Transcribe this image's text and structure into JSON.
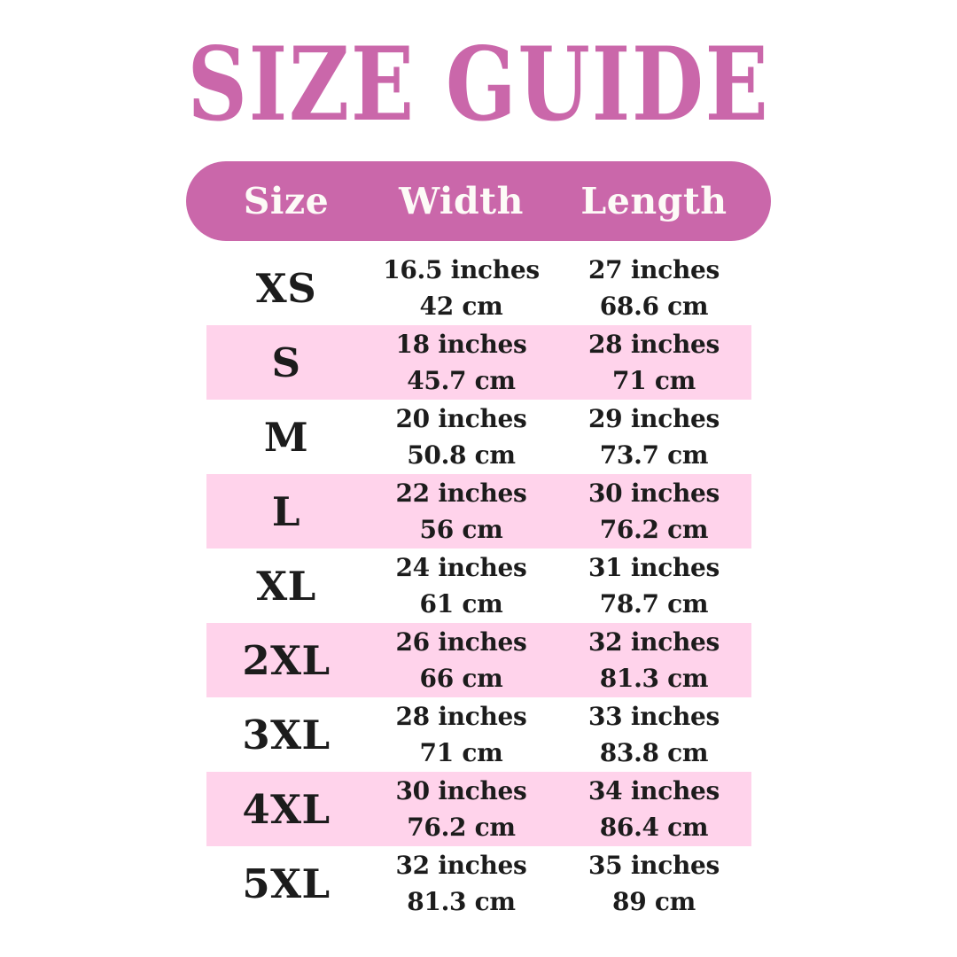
{
  "title": "SIZE GUIDE",
  "colors": {
    "accent_pink": "#ca67aa",
    "highlight_row_pink": "#ffd3eb",
    "header_text": "#fdfbf7",
    "body_text": "#1c1c1c",
    "background": "#ffffff"
  },
  "chart_data": {
    "type": "table",
    "title": "SIZE GUIDE",
    "columns": [
      "Size",
      "Width",
      "Length"
    ],
    "rows": [
      {
        "size": "XS",
        "width_in": "16.5 inches",
        "width_cm": "42 cm",
        "length_in": "27 inches",
        "length_cm": "68.6 cm",
        "highlighted": false
      },
      {
        "size": "S",
        "width_in": "18 inches",
        "width_cm": "45.7 cm",
        "length_in": "28 inches",
        "length_cm": "71 cm",
        "highlighted": true
      },
      {
        "size": "M",
        "width_in": "20 inches",
        "width_cm": "50.8 cm",
        "length_in": "29 inches",
        "length_cm": "73.7 cm",
        "highlighted": false
      },
      {
        "size": "L",
        "width_in": "22 inches",
        "width_cm": "56 cm",
        "length_in": "30 inches",
        "length_cm": "76.2 cm",
        "highlighted": true
      },
      {
        "size": "XL",
        "width_in": "24 inches",
        "width_cm": "61 cm",
        "length_in": "31 inches",
        "length_cm": "78.7 cm",
        "highlighted": false
      },
      {
        "size": "2XL",
        "width_in": "26 inches",
        "width_cm": "66 cm",
        "length_in": "32 inches",
        "length_cm": "81.3 cm",
        "highlighted": true
      },
      {
        "size": "3XL",
        "width_in": "28 inches",
        "width_cm": "71 cm",
        "length_in": "33 inches",
        "length_cm": "83.8 cm",
        "highlighted": false
      },
      {
        "size": "4XL",
        "width_in": "30 inches",
        "width_cm": "76.2 cm",
        "length_in": "34 inches",
        "length_cm": "86.4 cm",
        "highlighted": true
      },
      {
        "size": "5XL",
        "width_in": "32 inches",
        "width_cm": "81.3 cm",
        "length_in": "35 inches",
        "length_cm": "89 cm",
        "highlighted": false
      }
    ]
  }
}
